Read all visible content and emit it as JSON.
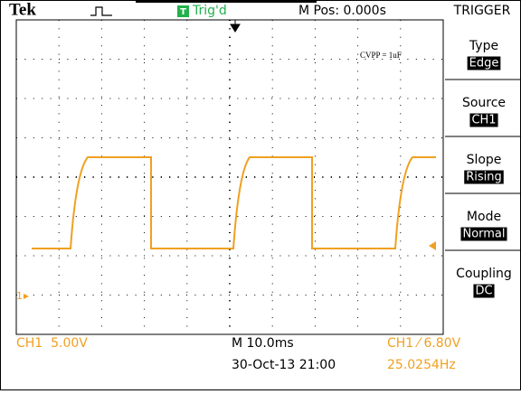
{
  "header": {
    "brand": "Tek",
    "trigger_status_icon": "T",
    "trigger_status": "Trig'd",
    "position": "M Pos: 0.000s",
    "menu_title": "TRIGGER"
  },
  "menu": [
    {
      "label": "Type",
      "value": "Edge"
    },
    {
      "label": "Source",
      "value": "CH1"
    },
    {
      "label": "Slope",
      "value": "Rising"
    },
    {
      "label": "Mode",
      "value": "Normal"
    },
    {
      "label": "Coupling",
      "value": "DC"
    }
  ],
  "annotation": "CVPP = 1uF",
  "channel_marker": "1",
  "footer": {
    "channel_scale": "CH1  5.00V",
    "timebase": "M 10.0ms",
    "trigger_level": "CH1 ⁄ 6.80V",
    "date": "30-Oct-13 21:00",
    "frequency": "25.0254Hz"
  }
}
